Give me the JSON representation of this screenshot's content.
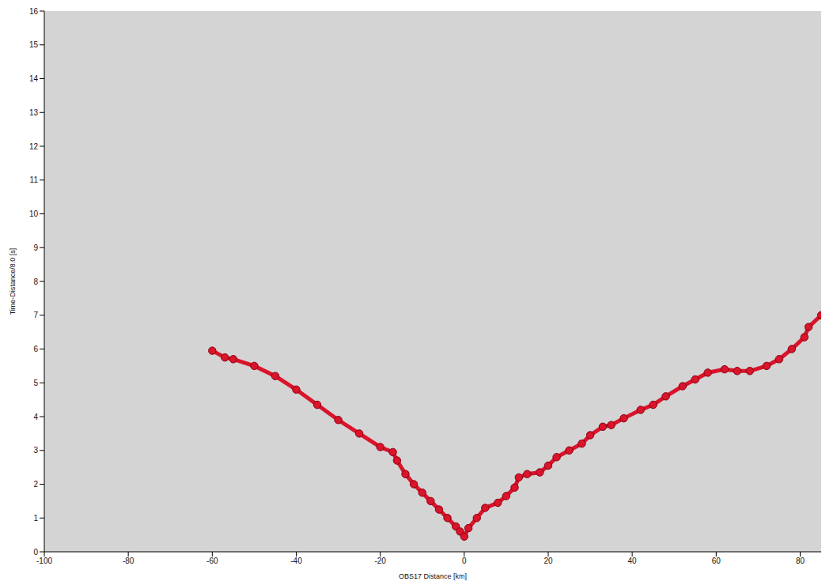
{
  "chart_data": {
    "type": "scatter",
    "x_label": "OBS17 Distance [km]",
    "y_label": "Time-Distance/8.0 [s]",
    "x": [
      -60,
      -57,
      -55,
      -50,
      -45,
      -40,
      -35,
      -30,
      -25,
      -20,
      -17,
      -16,
      -14,
      -12,
      -10,
      -8,
      -6,
      -4,
      -2,
      -1,
      0,
      1,
      3,
      5,
      8,
      10,
      12,
      13,
      15,
      18,
      20,
      22,
      25,
      28,
      30,
      33,
      35,
      38,
      42,
      45,
      48,
      52,
      55,
      58,
      62,
      65,
      68,
      72,
      75,
      78,
      81,
      82,
      85
    ],
    "values": [
      5.95,
      5.75,
      5.7,
      5.5,
      5.2,
      4.8,
      4.35,
      3.9,
      3.5,
      3.1,
      2.95,
      2.7,
      2.3,
      2.0,
      1.75,
      1.5,
      1.25,
      1.0,
      0.75,
      0.6,
      0.45,
      0.7,
      1.0,
      1.3,
      1.45,
      1.65,
      1.9,
      2.2,
      2.3,
      2.35,
      2.55,
      2.8,
      3.0,
      3.2,
      3.45,
      3.7,
      3.75,
      3.95,
      4.2,
      4.35,
      4.6,
      4.9,
      5.1,
      5.3,
      5.4,
      5.35,
      5.35,
      5.5,
      5.7,
      6.0,
      6.35,
      6.65,
      7.0
    ],
    "color": "#d9142b",
    "marker": "circle",
    "line_style": "solid",
    "xlim": [
      -100,
      85
    ],
    "xticks": [
      -100,
      -80,
      -60,
      -40,
      -20,
      0,
      20,
      40,
      60,
      80
    ],
    "ylim": [
      0,
      16
    ],
    "yticks": [
      0,
      1,
      2,
      3,
      4,
      5,
      6,
      7,
      8,
      9,
      10,
      11,
      12,
      13,
      14,
      15,
      16
    ],
    "grid": false
  }
}
